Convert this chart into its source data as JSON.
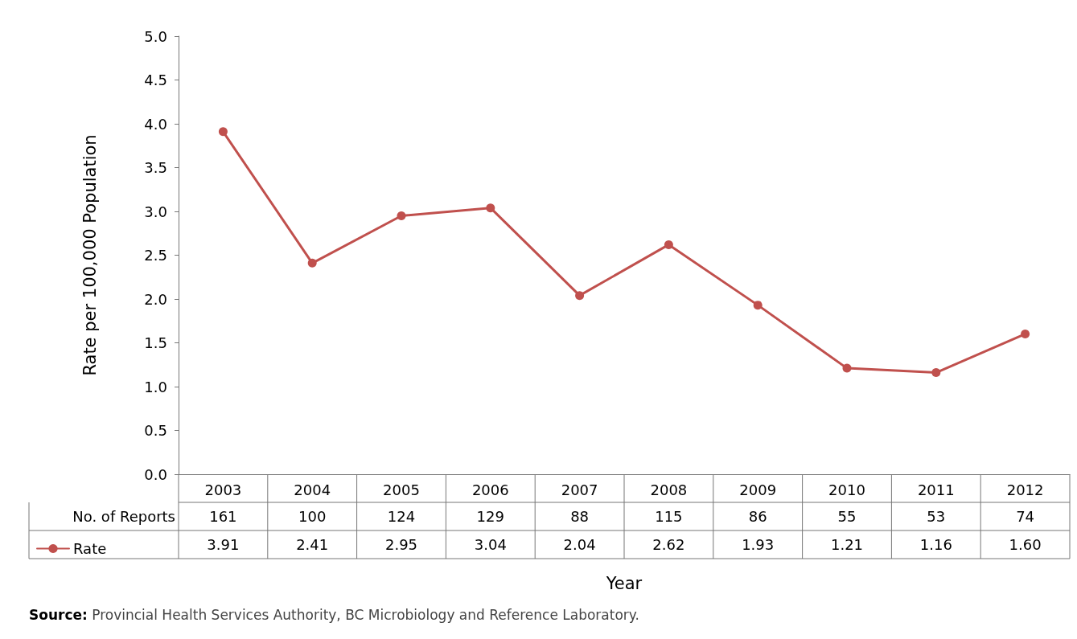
{
  "chart_data": [
    {
      "type": "line",
      "xlabel": "Year",
      "ylabel": "Rate per 100,000 Population",
      "categories": [
        "2003",
        "2004",
        "2005",
        "2006",
        "2007",
        "2008",
        "2009",
        "2010",
        "2011",
        "2012"
      ],
      "series": [
        {
          "name": "Rate",
          "color": "#c0504d",
          "values": [
            3.91,
            2.41,
            2.95,
            3.04,
            2.04,
            2.62,
            1.93,
            1.21,
            1.16,
            1.6
          ],
          "value_labels": [
            "3.91",
            "2.41",
            "2.95",
            "3.04",
            "2.04",
            "2.62",
            "1.93",
            "1.21",
            "1.16",
            "1.60"
          ]
        }
      ],
      "ylim": [
        0,
        5
      ],
      "yticks": [
        {
          "value": 0,
          "label": "0.0"
        },
        {
          "value": 0.5,
          "label": "0.5"
        },
        {
          "value": 1,
          "label": "1.0"
        },
        {
          "value": 1.5,
          "label": "1.5"
        },
        {
          "value": 2,
          "label": "2.0"
        },
        {
          "value": 2.5,
          "label": "2.5"
        },
        {
          "value": 3,
          "label": "3.0"
        },
        {
          "value": 3.5,
          "label": "3.5"
        },
        {
          "value": 4,
          "label": "4.0"
        },
        {
          "value": 4.5,
          "label": "4.5"
        },
        {
          "value": 5,
          "label": "5.0"
        }
      ],
      "grid": false,
      "legend": "bottom left",
      "marker": "circle",
      "line_style": "solid",
      "data_labels": true,
      "annotations": [
        "Source: Provincial Health Services Authority, BC Microbiology and Reference Laboratory."
      ]
    },
    {
      "type": "other",
      "series": [
        {
          "name": "No. of Reports",
          "values": [
            161,
            100,
            124,
            129,
            88,
            115,
            86,
            55,
            53,
            74
          ]
        }
      ],
      "data_labels": true
    }
  ]
}
